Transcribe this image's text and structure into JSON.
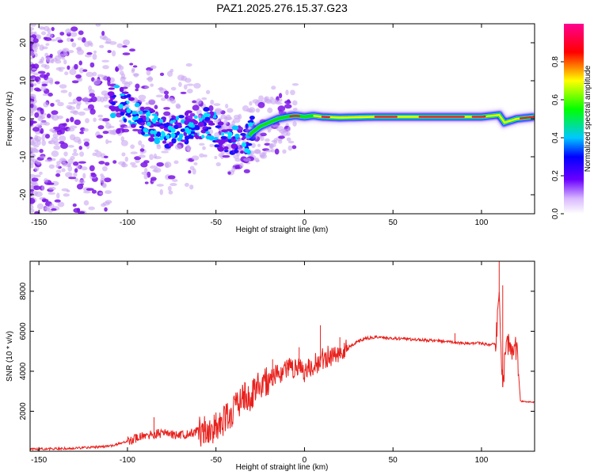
{
  "title": "PAZ1.2025.276.15.37.G23",
  "colors": {
    "snr_line": "#e8201c",
    "ridge_peak": "#e8203a",
    "ridge_mid": "#11e00f",
    "ridge_edge": "#1a10ff",
    "scatter": "#7a12e8",
    "scatter_light": "#c9a6f2"
  },
  "chart_data": [
    {
      "type": "heatmap",
      "name": "spectrogram",
      "xlabel": "Height of straight line (km)",
      "ylabel": "Frequency (Hz)",
      "xlim": [
        -155,
        130
      ],
      "ylim": [
        -25,
        25
      ],
      "xticks": [
        -150,
        -100,
        -50,
        0,
        50,
        100
      ],
      "yticks": [
        -20,
        -10,
        0,
        10,
        20
      ],
      "xtick_labels": [
        "-150",
        "-100",
        "-50",
        "0",
        "50",
        "100"
      ],
      "ytick_labels": [
        "-20",
        "-10",
        "0",
        "10",
        "20"
      ],
      "ridge_points": [
        [
          -110,
          5
        ],
        [
          -105,
          4.5
        ],
        [
          -100,
          3
        ],
        [
          -95,
          1
        ],
        [
          -90,
          -1
        ],
        [
          -85,
          -2
        ],
        [
          -80,
          -3
        ],
        [
          -75,
          -3.5
        ],
        [
          -70,
          -2.5
        ],
        [
          -65,
          -2
        ],
        [
          -60,
          -2.5
        ],
        [
          -55,
          -1
        ],
        [
          -50,
          -3
        ],
        [
          -45,
          -5
        ],
        [
          -40,
          -6
        ],
        [
          -35,
          -7
        ],
        [
          -32,
          -5
        ],
        [
          -30,
          -3.8
        ],
        [
          -25,
          -2
        ],
        [
          -20,
          -1
        ],
        [
          -15,
          0
        ],
        [
          -10,
          0.5
        ],
        [
          -5,
          0.8
        ],
        [
          0,
          0.5
        ],
        [
          5,
          0.8
        ],
        [
          10,
          0.5
        ],
        [
          20,
          0.3
        ],
        [
          40,
          0.5
        ],
        [
          60,
          0.5
        ],
        [
          80,
          0.5
        ],
        [
          100,
          0.5
        ],
        [
          110,
          1
        ],
        [
          113,
          -1
        ],
        [
          120,
          0
        ],
        [
          130,
          0.5
        ]
      ],
      "colorbar": {
        "label": "Normalized spectral amplitude",
        "range": [
          0,
          1
        ],
        "ticks": [
          0.0,
          0.2,
          0.4,
          0.6,
          0.8
        ],
        "tick_labels": [
          "0.0",
          "0.2",
          "0.4",
          "0.6",
          "0.8"
        ]
      }
    },
    {
      "type": "line",
      "name": "snr",
      "xlabel": "Height of straight line (km)",
      "ylabel": "SNR (10 * v/v)",
      "xlim": [
        -155,
        130
      ],
      "ylim": [
        0,
        9500
      ],
      "xticks": [
        -150,
        -100,
        -50,
        0,
        50,
        100
      ],
      "yticks": [
        2000,
        4000,
        6000,
        8000
      ],
      "xtick_labels": [
        "-150",
        "-100",
        "-50",
        "0",
        "50",
        "100"
      ],
      "ytick_labels": [
        "2000",
        "4000",
        "6000",
        "8000"
      ],
      "x": [
        -155,
        -130,
        -110,
        -100,
        -90,
        -80,
        -70,
        -60,
        -50,
        -45,
        -40,
        -35,
        -30,
        -25,
        -20,
        -15,
        -10,
        -5,
        0,
        5,
        10,
        15,
        20,
        25,
        30,
        35,
        40,
        50,
        60,
        70,
        80,
        90,
        100,
        105,
        108,
        110,
        112,
        114,
        116,
        118,
        120,
        122,
        130
      ],
      "y": [
        100,
        150,
        250,
        500,
        800,
        900,
        800,
        1000,
        1200,
        1500,
        2000,
        2600,
        2800,
        3400,
        3600,
        3800,
        4100,
        4200,
        4000,
        4300,
        4600,
        4800,
        4900,
        5200,
        5500,
        5650,
        5700,
        5650,
        5600,
        5550,
        5500,
        5400,
        5400,
        5300,
        5400,
        7500,
        3200,
        5400,
        5200,
        5200,
        5100,
        2500,
        2450
      ],
      "spikes": [
        [
          -85,
          1700
        ],
        [
          -35,
          3100
        ],
        [
          -28,
          3600
        ],
        [
          -18,
          4600
        ],
        [
          -10,
          4200
        ],
        [
          -3,
          5200
        ],
        [
          9,
          6300
        ],
        [
          20,
          5700
        ],
        [
          85,
          5900
        ],
        [
          110,
          9500
        ],
        [
          112,
          8300
        ]
      ]
    }
  ]
}
